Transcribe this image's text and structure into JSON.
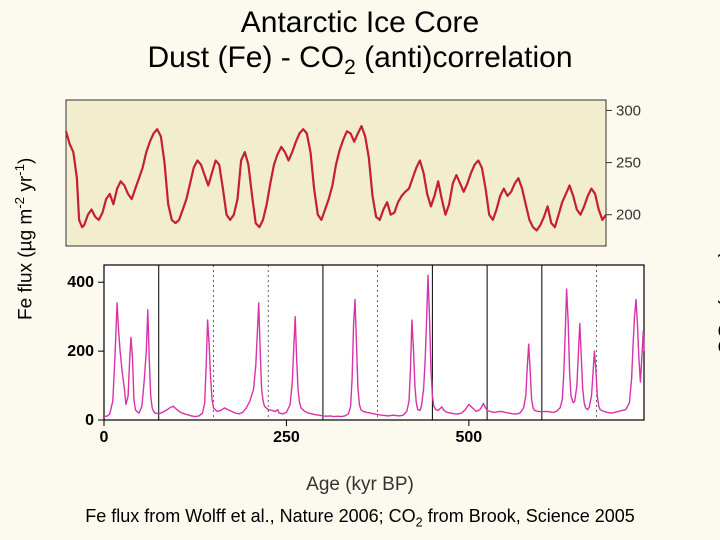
{
  "title_line1": "Antarctic Ice Core",
  "title_line2_a": "Dust (Fe) - CO",
  "title_line2_b": " (anti)correlation",
  "ylabel_left_a": "Fe flux (µg m",
  "ylabel_left_b": " yr",
  "ylabel_left_c": ")",
  "ylabel_right_a": "CO",
  "ylabel_right_b": " (ppm)",
  "xlabel_a": "Age (kyr ",
  "xlabel_b": ")",
  "xlabel_bp": "BP",
  "citation_a": "Fe flux from Wolff et al., Nature 2006;   CO",
  "citation_b": " from Brook, Science 2005",
  "co2_chart": {
    "type": "line",
    "xlim": [
      0,
      740
    ],
    "ylim": [
      170,
      310
    ],
    "yticks": [
      200,
      250,
      300
    ],
    "background_color": "#f2edcf",
    "series_color": "#c4202f",
    "line_width": 2.2,
    "axis_color": "#333333",
    "data": [
      [
        0,
        280
      ],
      [
        5,
        268
      ],
      [
        10,
        260
      ],
      [
        12,
        250
      ],
      [
        15,
        235
      ],
      [
        18,
        195
      ],
      [
        22,
        188
      ],
      [
        25,
        190
      ],
      [
        30,
        200
      ],
      [
        35,
        205
      ],
      [
        40,
        198
      ],
      [
        45,
        195
      ],
      [
        50,
        202
      ],
      [
        55,
        215
      ],
      [
        60,
        220
      ],
      [
        65,
        210
      ],
      [
        70,
        225
      ],
      [
        75,
        232
      ],
      [
        80,
        228
      ],
      [
        85,
        220
      ],
      [
        90,
        215
      ],
      [
        95,
        225
      ],
      [
        100,
        235
      ],
      [
        105,
        245
      ],
      [
        110,
        260
      ],
      [
        115,
        270
      ],
      [
        120,
        278
      ],
      [
        125,
        282
      ],
      [
        130,
        275
      ],
      [
        135,
        250
      ],
      [
        140,
        210
      ],
      [
        145,
        195
      ],
      [
        150,
        192
      ],
      [
        155,
        195
      ],
      [
        160,
        205
      ],
      [
        165,
        215
      ],
      [
        170,
        230
      ],
      [
        175,
        245
      ],
      [
        180,
        252
      ],
      [
        185,
        248
      ],
      [
        190,
        238
      ],
      [
        195,
        228
      ],
      [
        200,
        240
      ],
      [
        205,
        252
      ],
      [
        210,
        248
      ],
      [
        215,
        225
      ],
      [
        220,
        200
      ],
      [
        225,
        195
      ],
      [
        230,
        200
      ],
      [
        235,
        215
      ],
      [
        240,
        252
      ],
      [
        245,
        260
      ],
      [
        250,
        248
      ],
      [
        255,
        218
      ],
      [
        260,
        192
      ],
      [
        265,
        188
      ],
      [
        270,
        195
      ],
      [
        275,
        210
      ],
      [
        280,
        230
      ],
      [
        285,
        248
      ],
      [
        290,
        258
      ],
      [
        295,
        265
      ],
      [
        300,
        260
      ],
      [
        305,
        252
      ],
      [
        310,
        260
      ],
      [
        315,
        270
      ],
      [
        320,
        278
      ],
      [
        325,
        282
      ],
      [
        330,
        278
      ],
      [
        335,
        260
      ],
      [
        340,
        225
      ],
      [
        345,
        200
      ],
      [
        350,
        195
      ],
      [
        355,
        205
      ],
      [
        360,
        215
      ],
      [
        365,
        228
      ],
      [
        370,
        248
      ],
      [
        375,
        262
      ],
      [
        380,
        272
      ],
      [
        385,
        280
      ],
      [
        390,
        278
      ],
      [
        395,
        270
      ],
      [
        400,
        278
      ],
      [
        405,
        285
      ],
      [
        410,
        275
      ],
      [
        415,
        255
      ],
      [
        420,
        218
      ],
      [
        425,
        198
      ],
      [
        430,
        195
      ],
      [
        435,
        205
      ],
      [
        440,
        212
      ],
      [
        445,
        200
      ],
      [
        450,
        202
      ],
      [
        455,
        212
      ],
      [
        460,
        218
      ],
      [
        465,
        222
      ],
      [
        470,
        225
      ],
      [
        475,
        235
      ],
      [
        480,
        245
      ],
      [
        485,
        252
      ],
      [
        490,
        240
      ],
      [
        495,
        220
      ],
      [
        500,
        208
      ],
      [
        505,
        218
      ],
      [
        510,
        232
      ],
      [
        515,
        215
      ],
      [
        520,
        200
      ],
      [
        525,
        210
      ],
      [
        530,
        230
      ],
      [
        535,
        238
      ],
      [
        540,
        230
      ],
      [
        545,
        222
      ],
      [
        550,
        230
      ],
      [
        555,
        240
      ],
      [
        560,
        248
      ],
      [
        565,
        252
      ],
      [
        570,
        245
      ],
      [
        575,
        225
      ],
      [
        580,
        200
      ],
      [
        585,
        195
      ],
      [
        590,
        205
      ],
      [
        595,
        218
      ],
      [
        600,
        225
      ],
      [
        605,
        218
      ],
      [
        610,
        222
      ],
      [
        615,
        230
      ],
      [
        620,
        235
      ],
      [
        625,
        225
      ],
      [
        630,
        210
      ],
      [
        635,
        195
      ],
      [
        640,
        188
      ],
      [
        645,
        185
      ],
      [
        650,
        190
      ],
      [
        655,
        198
      ],
      [
        660,
        208
      ],
      [
        665,
        192
      ],
      [
        670,
        188
      ],
      [
        675,
        200
      ],
      [
        680,
        212
      ],
      [
        685,
        220
      ],
      [
        690,
        228
      ],
      [
        695,
        218
      ],
      [
        700,
        205
      ],
      [
        705,
        200
      ],
      [
        710,
        208
      ],
      [
        715,
        218
      ],
      [
        720,
        225
      ],
      [
        725,
        220
      ],
      [
        730,
        205
      ],
      [
        735,
        195
      ],
      [
        740,
        200
      ]
    ]
  },
  "fe_chart": {
    "type": "line",
    "xlim": [
      0,
      740
    ],
    "ylim": [
      0,
      450
    ],
    "xticks": [
      0,
      250,
      500
    ],
    "yticks": [
      0,
      200,
      400
    ],
    "background_color": "#ffffff",
    "series_color": "#d832a8",
    "line_width": 1.4,
    "axis_color": "#000000",
    "grid_lines_x": [
      75,
      150,
      225,
      300,
      375,
      450,
      525,
      600,
      675
    ],
    "grid_solid_x": [
      75,
      300,
      450,
      525,
      600
    ],
    "data": [
      [
        0,
        10
      ],
      [
        5,
        12
      ],
      [
        8,
        18
      ],
      [
        12,
        55
      ],
      [
        15,
        180
      ],
      [
        18,
        340
      ],
      [
        20,
        260
      ],
      [
        22,
        200
      ],
      [
        25,
        140
      ],
      [
        28,
        90
      ],
      [
        30,
        45
      ],
      [
        33,
        70
      ],
      [
        35,
        165
      ],
      [
        37,
        240
      ],
      [
        39,
        180
      ],
      [
        41,
        60
      ],
      [
        43,
        30
      ],
      [
        45,
        25
      ],
      [
        48,
        20
      ],
      [
        52,
        40
      ],
      [
        55,
        110
      ],
      [
        58,
        200
      ],
      [
        60,
        320
      ],
      [
        62,
        180
      ],
      [
        64,
        70
      ],
      [
        66,
        35
      ],
      [
        68,
        25
      ],
      [
        70,
        20
      ],
      [
        75,
        18
      ],
      [
        80,
        22
      ],
      [
        85,
        28
      ],
      [
        90,
        35
      ],
      [
        95,
        40
      ],
      [
        100,
        30
      ],
      [
        105,
        22
      ],
      [
        110,
        18
      ],
      [
        115,
        15
      ],
      [
        120,
        12
      ],
      [
        125,
        10
      ],
      [
        130,
        12
      ],
      [
        135,
        20
      ],
      [
        138,
        50
      ],
      [
        140,
        160
      ],
      [
        142,
        290
      ],
      [
        144,
        220
      ],
      [
        146,
        130
      ],
      [
        148,
        60
      ],
      [
        150,
        35
      ],
      [
        155,
        25
      ],
      [
        160,
        28
      ],
      [
        165,
        35
      ],
      [
        170,
        30
      ],
      [
        175,
        25
      ],
      [
        180,
        20
      ],
      [
        185,
        18
      ],
      [
        190,
        22
      ],
      [
        195,
        35
      ],
      [
        200,
        55
      ],
      [
        205,
        90
      ],
      [
        208,
        160
      ],
      [
        210,
        245
      ],
      [
        212,
        340
      ],
      [
        214,
        200
      ],
      [
        216,
        90
      ],
      [
        218,
        55
      ],
      [
        220,
        40
      ],
      [
        225,
        30
      ],
      [
        230,
        28
      ],
      [
        235,
        25
      ],
      [
        238,
        30
      ],
      [
        240,
        20
      ],
      [
        245,
        18
      ],
      [
        250,
        22
      ],
      [
        255,
        45
      ],
      [
        258,
        110
      ],
      [
        260,
        205
      ],
      [
        262,
        300
      ],
      [
        264,
        180
      ],
      [
        266,
        85
      ],
      [
        268,
        50
      ],
      [
        270,
        35
      ],
      [
        275,
        25
      ],
      [
        280,
        20
      ],
      [
        285,
        18
      ],
      [
        290,
        15
      ],
      [
        295,
        14
      ],
      [
        300,
        12
      ],
      [
        305,
        11
      ],
      [
        310,
        12
      ],
      [
        315,
        10
      ],
      [
        320,
        11
      ],
      [
        325,
        10
      ],
      [
        330,
        12
      ],
      [
        335,
        18
      ],
      [
        338,
        40
      ],
      [
        340,
        120
      ],
      [
        342,
        280
      ],
      [
        344,
        350
      ],
      [
        346,
        220
      ],
      [
        348,
        95
      ],
      [
        350,
        45
      ],
      [
        352,
        30
      ],
      [
        355,
        25
      ],
      [
        360,
        22
      ],
      [
        365,
        20
      ],
      [
        370,
        18
      ],
      [
        375,
        16
      ],
      [
        380,
        14
      ],
      [
        385,
        13
      ],
      [
        390,
        12
      ],
      [
        395,
        14
      ],
      [
        400,
        13
      ],
      [
        405,
        12
      ],
      [
        410,
        14
      ],
      [
        415,
        25
      ],
      [
        418,
        55
      ],
      [
        420,
        150
      ],
      [
        422,
        290
      ],
      [
        424,
        210
      ],
      [
        426,
        100
      ],
      [
        428,
        50
      ],
      [
        430,
        30
      ],
      [
        433,
        28
      ],
      [
        435,
        40
      ],
      [
        438,
        90
      ],
      [
        440,
        170
      ],
      [
        442,
        280
      ],
      [
        444,
        420
      ],
      [
        446,
        300
      ],
      [
        448,
        150
      ],
      [
        450,
        70
      ],
      [
        452,
        40
      ],
      [
        455,
        30
      ],
      [
        458,
        28
      ],
      [
        460,
        32
      ],
      [
        463,
        38
      ],
      [
        465,
        30
      ],
      [
        468,
        25
      ],
      [
        470,
        22
      ],
      [
        475,
        20
      ],
      [
        480,
        18
      ],
      [
        485,
        17
      ],
      [
        490,
        20
      ],
      [
        495,
        30
      ],
      [
        500,
        45
      ],
      [
        505,
        35
      ],
      [
        510,
        25
      ],
      [
        515,
        30
      ],
      [
        518,
        40
      ],
      [
        520,
        48
      ],
      [
        523,
        35
      ],
      [
        525,
        28
      ],
      [
        530,
        24
      ],
      [
        535,
        22
      ],
      [
        540,
        24
      ],
      [
        545,
        25
      ],
      [
        550,
        22
      ],
      [
        555,
        20
      ],
      [
        560,
        18
      ],
      [
        565,
        17
      ],
      [
        570,
        20
      ],
      [
        575,
        35
      ],
      [
        578,
        70
      ],
      [
        580,
        150
      ],
      [
        582,
        220
      ],
      [
        584,
        140
      ],
      [
        586,
        60
      ],
      [
        588,
        35
      ],
      [
        590,
        28
      ],
      [
        595,
        25
      ],
      [
        600,
        24
      ],
      [
        605,
        25
      ],
      [
        610,
        24
      ],
      [
        615,
        22
      ],
      [
        620,
        25
      ],
      [
        625,
        35
      ],
      [
        628,
        60
      ],
      [
        630,
        130
      ],
      [
        632,
        250
      ],
      [
        634,
        380
      ],
      [
        636,
        290
      ],
      [
        638,
        140
      ],
      [
        640,
        70
      ],
      [
        643,
        50
      ],
      [
        645,
        55
      ],
      [
        648,
        100
      ],
      [
        650,
        190
      ],
      [
        652,
        280
      ],
      [
        654,
        190
      ],
      [
        656,
        90
      ],
      [
        658,
        50
      ],
      [
        660,
        35
      ],
      [
        663,
        30
      ],
      [
        665,
        38
      ],
      [
        668,
        70
      ],
      [
        670,
        130
      ],
      [
        672,
        200
      ],
      [
        674,
        150
      ],
      [
        676,
        70
      ],
      [
        678,
        40
      ],
      [
        680,
        30
      ],
      [
        685,
        25
      ],
      [
        690,
        22
      ],
      [
        695,
        20
      ],
      [
        700,
        22
      ],
      [
        705,
        25
      ],
      [
        710,
        28
      ],
      [
        715,
        30
      ],
      [
        720,
        50
      ],
      [
        723,
        120
      ],
      [
        725,
        220
      ],
      [
        727,
        300
      ],
      [
        729,
        350
      ],
      [
        731,
        280
      ],
      [
        733,
        180
      ],
      [
        735,
        110
      ],
      [
        737,
        180
      ],
      [
        739,
        260
      ],
      [
        740,
        200
      ]
    ]
  }
}
